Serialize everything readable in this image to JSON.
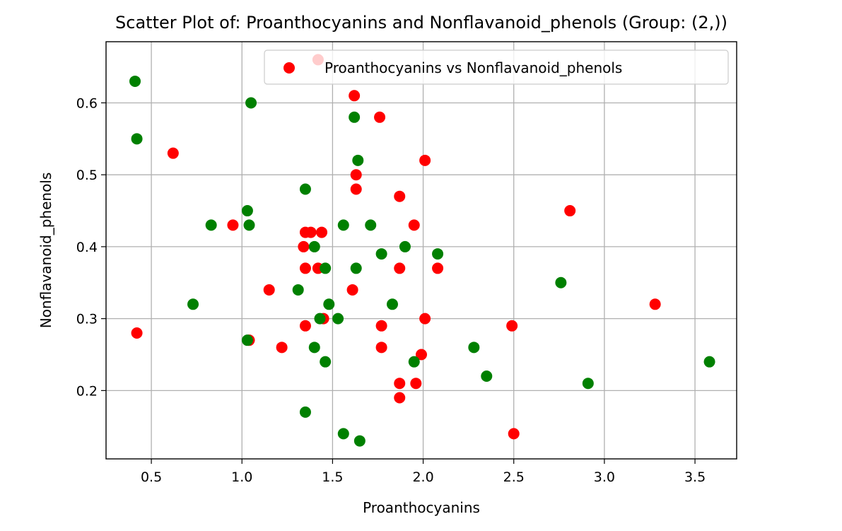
{
  "chart_data": {
    "type": "scatter",
    "title": "Scatter Plot of: Proanthocyanins and Nonflavanoid_phenols (Group: (2,))",
    "xlabel": "Proanthocyanins",
    "ylabel": "Nonflavanoid_phenols",
    "xlim": [
      0.25,
      3.73
    ],
    "ylim": [
      0.105,
      0.685
    ],
    "xticks": [
      0.5,
      1.0,
      1.5,
      2.0,
      2.5,
      3.0,
      3.5
    ],
    "xtick_labels": [
      "0.5",
      "1.0",
      "1.5",
      "2.0",
      "2.5",
      "3.0",
      "3.5"
    ],
    "yticks": [
      0.2,
      0.3,
      0.4,
      0.5,
      0.6
    ],
    "ytick_labels": [
      "0.2",
      "0.3",
      "0.4",
      "0.5",
      "0.6"
    ],
    "grid": true,
    "legend": {
      "placement": "upper-right",
      "entries": [
        {
          "label": "Proanthocyanins vs Nonflavanoid_phenols",
          "color": "#ff0000"
        }
      ]
    },
    "series": [
      {
        "name": "Proanthocyanins vs Nonflavanoid_phenols",
        "color": "#ff0000",
        "x": [
          1.42,
          1.62,
          1.76,
          0.62,
          2.01,
          1.63,
          1.63,
          1.87,
          2.81,
          0.95,
          1.35,
          1.38,
          1.44,
          1.95,
          1.34,
          1.35,
          1.42,
          1.87,
          2.08,
          1.15,
          1.61,
          3.28,
          0.42,
          1.45,
          1.35,
          2.01,
          1.77,
          2.49,
          1.04,
          1.22,
          1.77,
          1.99,
          1.87,
          1.96,
          1.87,
          2.5
        ],
        "y": [
          0.66,
          0.61,
          0.58,
          0.53,
          0.52,
          0.5,
          0.48,
          0.47,
          0.45,
          0.43,
          0.42,
          0.42,
          0.42,
          0.43,
          0.4,
          0.37,
          0.37,
          0.37,
          0.37,
          0.34,
          0.34,
          0.32,
          0.28,
          0.3,
          0.29,
          0.3,
          0.29,
          0.29,
          0.27,
          0.26,
          0.26,
          0.25,
          0.21,
          0.21,
          0.19,
          0.14
        ]
      },
      {
        "color": "#008000",
        "x": [
          0.41,
          1.05,
          0.42,
          1.62,
          1.64,
          1.35,
          1.03,
          0.83,
          1.04,
          1.56,
          1.71,
          1.4,
          1.77,
          1.9,
          2.08,
          1.46,
          1.63,
          1.31,
          2.76,
          0.73,
          1.48,
          1.83,
          1.43,
          1.53,
          1.03,
          1.4,
          2.28,
          1.46,
          1.95,
          2.35,
          2.91,
          3.58,
          1.35,
          1.56,
          1.65
        ],
        "y": [
          0.63,
          0.6,
          0.55,
          0.58,
          0.52,
          0.48,
          0.45,
          0.43,
          0.43,
          0.43,
          0.43,
          0.4,
          0.39,
          0.4,
          0.39,
          0.37,
          0.37,
          0.34,
          0.35,
          0.32,
          0.32,
          0.32,
          0.3,
          0.3,
          0.27,
          0.26,
          0.26,
          0.24,
          0.24,
          0.22,
          0.21,
          0.24,
          0.17,
          0.14,
          0.13
        ]
      }
    ]
  }
}
